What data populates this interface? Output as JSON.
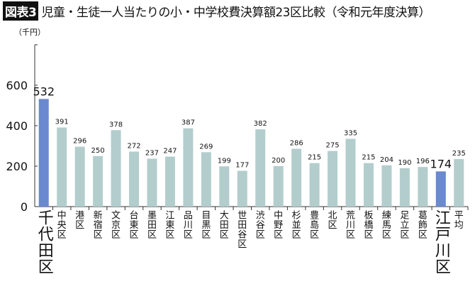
{
  "title": {
    "badge": "図表3",
    "text": "児童・生徒一人当たりの小・中学校費決算額23区比較（令和元年度決算）"
  },
  "chart_data": {
    "type": "bar",
    "title": "児童・生徒一人当たりの小・中学校費決算額23区比較（令和元年度決算）",
    "ylabel": "（千円）",
    "ylim": [
      0,
      800
    ],
    "yticks": [
      0,
      200,
      400,
      600,
      800
    ],
    "ytick_labels": [
      "0",
      "200",
      "400",
      "600",
      ""
    ],
    "grid": false,
    "categories": [
      "千代田区",
      "中央区",
      "港区",
      "新宿区",
      "文京区",
      "台東区",
      "墨田区",
      "江東区",
      "品川区",
      "目黒区",
      "大田区",
      "世田谷区",
      "渋谷区",
      "中野区",
      "杉並区",
      "豊島区",
      "北区",
      "荒川区",
      "板橋区",
      "練馬区",
      "足立区",
      "葛飾区",
      "江戸川区",
      "平均"
    ],
    "values": [
      532,
      391,
      296,
      250,
      378,
      272,
      237,
      247,
      387,
      269,
      199,
      177,
      382,
      200,
      286,
      215,
      275,
      335,
      215,
      204,
      190,
      196,
      174,
      235
    ],
    "highlighted": [
      "千代田区",
      "江戸川区"
    ],
    "colors": {
      "bar": "#b3cdcd",
      "highlight": "#6a89cf"
    }
  }
}
